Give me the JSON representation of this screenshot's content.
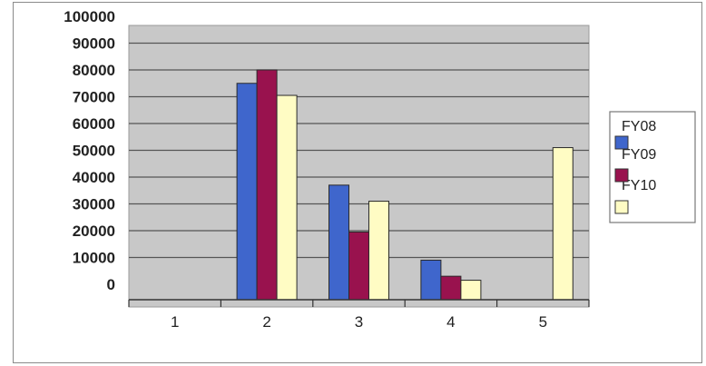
{
  "chart_data": {
    "type": "bar",
    "categories": [
      "1",
      "2",
      "3",
      "4",
      "5"
    ],
    "y_ticks": [
      "0",
      "10000",
      "20000",
      "30000",
      "40000",
      "50000",
      "60000",
      "70000",
      "80000",
      "90000",
      "100000"
    ],
    "ylim": [
      0,
      100000
    ],
    "grid": true,
    "legend_position": "right",
    "legend_labels": [
      "FY08",
      "FY09",
      "FY10"
    ],
    "series": [
      {
        "color": "#3f66cc",
        "values": [
          0,
          75000,
          37000,
          9000,
          0
        ]
      },
      {
        "color": "#99124e",
        "values": [
          0,
          80000,
          19500,
          3000,
          0
        ]
      },
      {
        "color": "#fffcc4",
        "values": [
          0,
          70500,
          31000,
          1500,
          51000
        ]
      }
    ],
    "colors": {
      "plot_background": "#c8c8c8",
      "gridline": "#555555"
    }
  }
}
